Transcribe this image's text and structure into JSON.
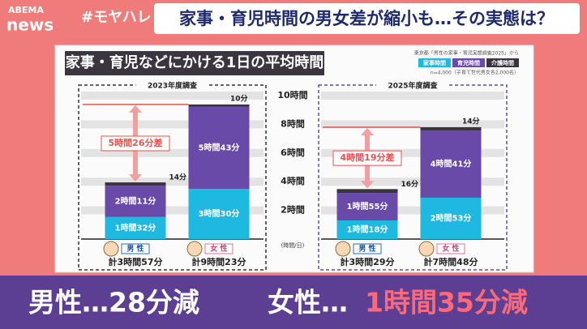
{
  "header": {
    "logo_top": "ABEMA",
    "logo_bottom": "news",
    "hashtag": "#モヤハレ",
    "headline": "家事・育児時間の男女差が縮小も…その実態は？"
  },
  "panel": {
    "title": "家事・育児などにかける1日の平均時間",
    "source": "東京都「男性の家事・育児実態調査2025」から",
    "note": "n=4,000（子育て世代男女各2,000名）"
  },
  "chart_data": [
    {
      "type": "bar",
      "stacked": true,
      "title": "2023年度調査",
      "categories": [
        "男 性",
        "女 性"
      ],
      "totals": [
        "計3時間57分",
        "計9時間23分"
      ],
      "difference_label": "5時間26分差",
      "ylim": [
        0,
        10
      ],
      "y_unit": "(時間/日)",
      "yticks": [
        {
          "value": 2,
          "label": "2時間"
        },
        {
          "value": 4,
          "label": "4時間"
        },
        {
          "value": 6,
          "label": "6時間"
        },
        {
          "value": 8,
          "label": "8時間"
        },
        {
          "value": 10,
          "label": "10時間"
        }
      ],
      "series": [
        {
          "name": "家事時間",
          "color": "#1fb8e0",
          "values": [
            1.5333,
            3.5
          ],
          "value_labels": [
            "1時間32分",
            "3時間30分"
          ]
        },
        {
          "name": "育児時間",
          "color": "#6a4aa8",
          "values": [
            2.1833,
            5.7167
          ],
          "value_labels": [
            "2時間11分",
            "5時間43分"
          ]
        },
        {
          "name": "介護時間",
          "color": "#3a3340",
          "values": [
            0.2333,
            0.1667
          ],
          "value_labels": [
            "14分",
            "10分"
          ]
        }
      ]
    },
    {
      "type": "bar",
      "stacked": true,
      "title": "2025年度調査",
      "categories": [
        "男 性",
        "女 性"
      ],
      "totals": [
        "計3時間29分",
        "計7時間48分"
      ],
      "difference_label": "4時間19分差",
      "ylim": [
        0,
        10
      ],
      "series": [
        {
          "color": "#1fb8e0",
          "values": [
            1.3,
            2.8833
          ],
          "value_labels": [
            "1時間18分",
            "2時間53分"
          ]
        },
        {
          "color": "#6a4aa8",
          "values": [
            1.9167,
            4.6833
          ],
          "value_labels": [
            "1時間55分",
            "4時間41分"
          ]
        },
        {
          "color": "#3a3340",
          "values": [
            0.2667,
            0.2333
          ],
          "value_labels": [
            "16分",
            "14分"
          ]
        }
      ]
    }
  ],
  "caption": {
    "men": "男性…28分減",
    "women": "女性…",
    "women_change": "1時間35分減"
  }
}
